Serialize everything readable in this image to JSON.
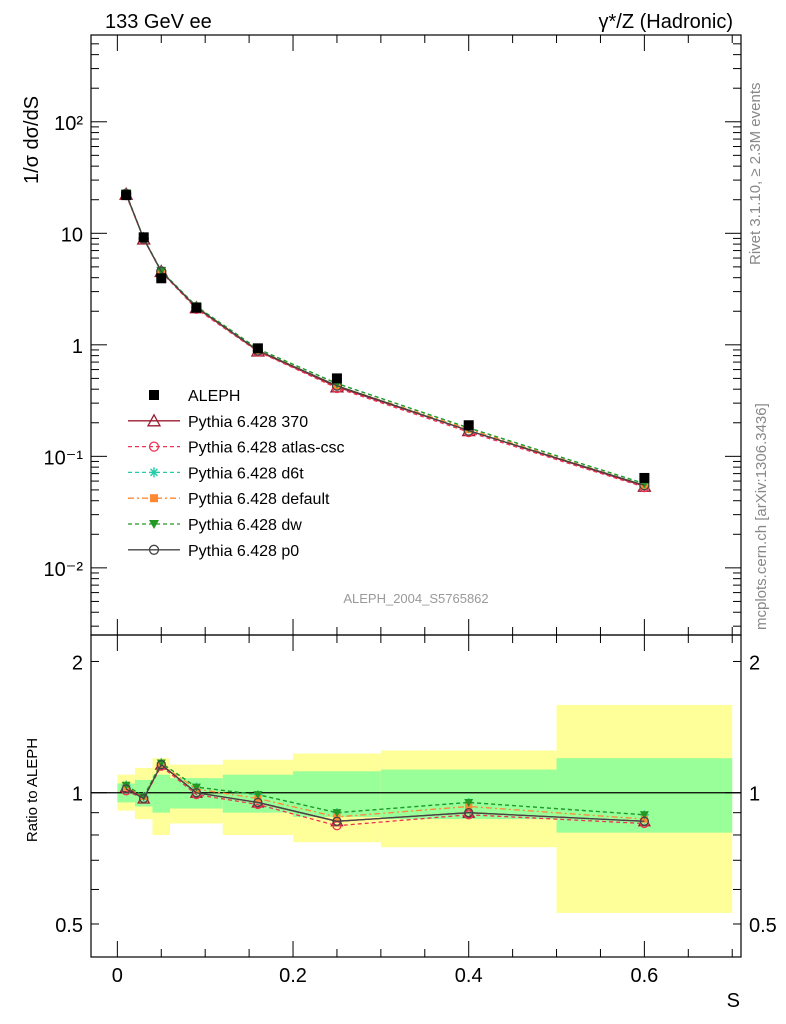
{
  "header": {
    "left": "133 GeV ee",
    "right": "γ*/Z (Hadronic)"
  },
  "side_text": {
    "rivet": "Rivet 3.1.10, ≥ 2.3M events",
    "mcplots": "mcplots.cern.ch [arXiv:1306.3436]"
  },
  "analysis_label": "ALEPH_2004_S5765862",
  "colors": {
    "band_inner": "#99ff99",
    "band_outer": "#ffff99"
  },
  "chart_data": [
    {
      "type": "line",
      "scale": "log",
      "ylabel": "1/σ  dσ/dS",
      "ylim": [
        0.0025,
        600
      ],
      "xlim": [
        -0.03,
        0.71
      ],
      "yticks": [
        {
          "value": 0.01,
          "label": "10⁻²"
        },
        {
          "value": 0.1,
          "label": "10⁻¹"
        },
        {
          "value": 1,
          "label": "1"
        },
        {
          "value": 10,
          "label": "10"
        },
        {
          "value": 100,
          "label": "10²"
        }
      ],
      "x": [
        0.01,
        0.03,
        0.05,
        0.09,
        0.16,
        0.25,
        0.4,
        0.6
      ],
      "data": {
        "name": "ALEPH",
        "color": "#000000",
        "values": [
          22.0,
          9.2,
          3.95,
          2.15,
          0.93,
          0.5,
          0.19,
          0.064
        ]
      },
      "series": [
        {
          "name": "Pythia 6.428 370",
          "color": "#9b1b30",
          "dash": "",
          "marker": "triangle-open",
          "values": [
            22.4,
            8.9,
            4.55,
            2.15,
            0.88,
            0.42,
            0.17,
            0.054
          ]
        },
        {
          "name": "Pythia 6.428 atlas-csc",
          "color": "#ee3355",
          "dash": "4,3",
          "marker": "circle-open",
          "values": [
            22.0,
            8.9,
            4.5,
            2.1,
            0.87,
            0.41,
            0.165,
            0.053
          ]
        },
        {
          "name": "Pythia 6.428 d6t",
          "color": "#22ccaa",
          "dash": "4,3",
          "marker": "asterisk",
          "values": [
            22.7,
            9.0,
            4.6,
            2.2,
            0.92,
            0.45,
            0.18,
            0.057
          ]
        },
        {
          "name": "Pythia 6.428 default",
          "color": "#ff8833",
          "dash": "6,3,2,3",
          "marker": "square",
          "values": [
            22.5,
            8.95,
            4.55,
            2.2,
            0.9,
            0.43,
            0.175,
            0.055
          ]
        },
        {
          "name": "Pythia 6.428 dw",
          "color": "#229922",
          "dash": "4,3",
          "marker": "triangle-down",
          "values": [
            22.8,
            9.0,
            4.6,
            2.22,
            0.92,
            0.45,
            0.18,
            0.057
          ]
        },
        {
          "name": "Pythia 6.428 p0",
          "color": "#444444",
          "dash": "",
          "marker": "circle-open",
          "values": [
            22.6,
            8.95,
            4.55,
            2.17,
            0.89,
            0.43,
            0.17,
            0.055
          ]
        }
      ]
    },
    {
      "type": "line",
      "scale": "log",
      "ylabel": "Ratio to ALEPH",
      "xlabel": "S",
      "ylim": [
        0.42,
        2.3
      ],
      "xlim": [
        -0.03,
        0.71
      ],
      "yticks": [
        {
          "value": 0.5,
          "label": "0.5"
        },
        {
          "value": 1,
          "label": "1"
        },
        {
          "value": 2,
          "label": "2"
        }
      ],
      "xticks": [
        {
          "value": 0,
          "label": "0"
        },
        {
          "value": 0.2,
          "label": "0.2"
        },
        {
          "value": 0.4,
          "label": "0.4"
        },
        {
          "value": 0.6,
          "label": "0.6"
        }
      ],
      "bands": [
        {
          "xmin": 0.0,
          "xmax": 0.02,
          "inner": [
            0.95,
            1.05
          ],
          "outer": [
            0.91,
            1.1
          ]
        },
        {
          "xmin": 0.02,
          "xmax": 0.04,
          "inner": [
            0.93,
            1.07
          ],
          "outer": [
            0.87,
            1.14
          ]
        },
        {
          "xmin": 0.04,
          "xmax": 0.06,
          "inner": [
            0.9,
            1.1
          ],
          "outer": [
            0.8,
            1.2
          ]
        },
        {
          "xmin": 0.06,
          "xmax": 0.12,
          "inner": [
            0.92,
            1.08
          ],
          "outer": [
            0.85,
            1.16
          ]
        },
        {
          "xmin": 0.12,
          "xmax": 0.2,
          "inner": [
            0.9,
            1.1
          ],
          "outer": [
            0.8,
            1.19
          ]
        },
        {
          "xmin": 0.2,
          "xmax": 0.3,
          "inner": [
            0.88,
            1.12
          ],
          "outer": [
            0.77,
            1.23
          ]
        },
        {
          "xmin": 0.3,
          "xmax": 0.5,
          "inner": [
            0.87,
            1.13
          ],
          "outer": [
            0.75,
            1.25
          ]
        },
        {
          "xmin": 0.5,
          "xmax": 0.7,
          "inner": [
            0.81,
            1.2
          ],
          "outer": [
            0.53,
            1.59
          ]
        }
      ],
      "x": [
        0.01,
        0.03,
        0.05,
        0.09,
        0.16,
        0.25,
        0.4,
        0.6
      ],
      "series": [
        {
          "name": "Pythia 6.428 370",
          "color": "#9b1b30",
          "dash": "",
          "marker": "triangle-open",
          "values": [
            1.03,
            0.97,
            1.16,
            1.0,
            0.95,
            0.86,
            0.9,
            0.86
          ]
        },
        {
          "name": "Pythia 6.428 atlas-csc",
          "color": "#ee3355",
          "dash": "4,3",
          "marker": "circle-open",
          "values": [
            1.01,
            0.97,
            1.15,
            0.99,
            0.94,
            0.84,
            0.89,
            0.85
          ]
        },
        {
          "name": "Pythia 6.428 d6t",
          "color": "#22ccaa",
          "dash": "4,3",
          "marker": "asterisk",
          "values": [
            1.04,
            0.98,
            1.17,
            1.03,
            0.99,
            0.9,
            0.95,
            0.89
          ]
        },
        {
          "name": "Pythia 6.428 default",
          "color": "#ff8833",
          "dash": "6,3,2,3",
          "marker": "square",
          "values": [
            1.03,
            0.98,
            1.16,
            1.02,
            0.97,
            0.88,
            0.93,
            0.87
          ]
        },
        {
          "name": "Pythia 6.428 dw",
          "color": "#229922",
          "dash": "4,3",
          "marker": "triangle-down",
          "values": [
            1.04,
            0.98,
            1.17,
            1.03,
            0.99,
            0.9,
            0.95,
            0.89
          ]
        },
        {
          "name": "Pythia 6.428 p0",
          "color": "#444444",
          "dash": "",
          "marker": "circle-open",
          "values": [
            1.02,
            0.97,
            1.16,
            1.0,
            0.95,
            0.86,
            0.9,
            0.86
          ]
        }
      ]
    }
  ]
}
